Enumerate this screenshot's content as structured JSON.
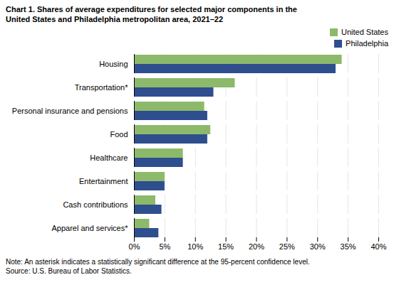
{
  "chart_data": {
    "type": "bar",
    "orientation": "horizontal",
    "title": "Chart 1. Shares of average expenditures for selected major components in the\nUnited States and Philadelphia metropolitan area, 2021–22",
    "categories": [
      "Apparel and services*",
      "Cash contributions",
      "Entertainment",
      "Healthcare",
      "Food",
      "Personal insurance and pensions",
      "Transportation*",
      "Housing"
    ],
    "series": [
      {
        "name": "United States",
        "color": "#8DB96A",
        "values": [
          2.5,
          3.5,
          5.0,
          8.0,
          12.5,
          11.5,
          16.5,
          34.0
        ]
      },
      {
        "name": "Philadelphia",
        "color": "#2E4E8E",
        "values": [
          4.0,
          4.5,
          5.0,
          8.0,
          12.0,
          12.0,
          13.0,
          33.0
        ]
      }
    ],
    "xlim": [
      0,
      40
    ],
    "xticks": [
      {
        "value": 0,
        "label": "0%"
      },
      {
        "value": 5,
        "label": "5%"
      },
      {
        "value": 10,
        "label": "10%"
      },
      {
        "value": 15,
        "label": "15%"
      },
      {
        "value": 20,
        "label": "20%"
      },
      {
        "value": 25,
        "label": "25%"
      },
      {
        "value": 30,
        "label": "30%"
      },
      {
        "value": 35,
        "label": "35%"
      },
      {
        "value": 40,
        "label": "40%"
      }
    ],
    "grid": true,
    "legend": "upper right",
    "annotations": [
      "Note: An asterisk indicates a statistically significant difference at the 95-percent confidence level.",
      "Source: U.S. Bureau of Labor Statistics."
    ]
  }
}
